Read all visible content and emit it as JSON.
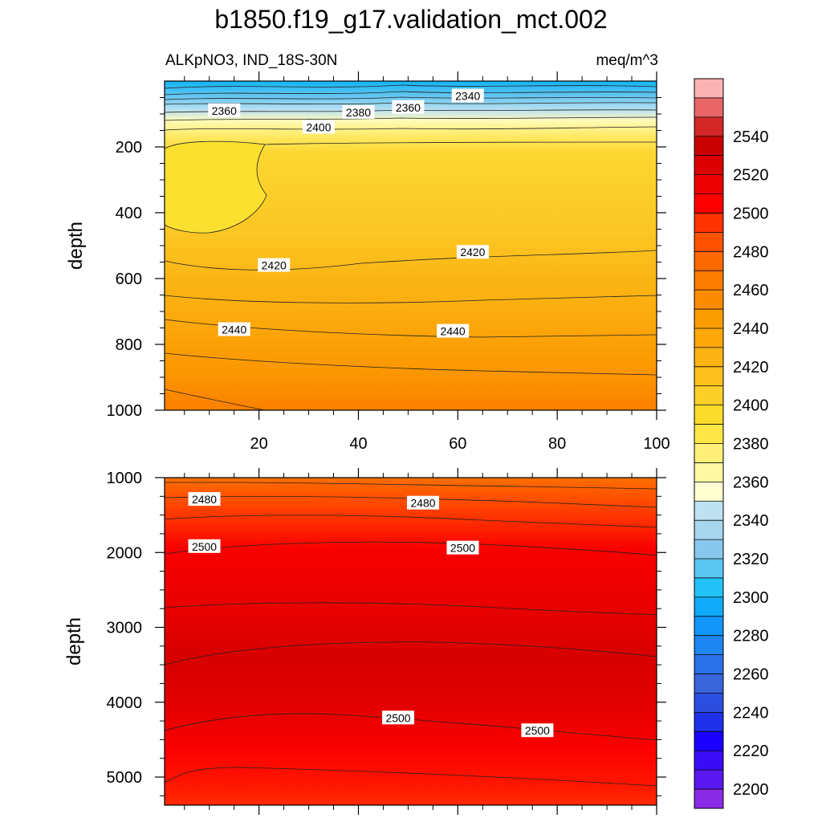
{
  "chart_data": [
    {
      "type": "contour",
      "title": "b1850.f19_g17.validation_mct.002",
      "left_string": "ALKpNO3, IND_18S-30N",
      "right_string": "meq/m^3",
      "ylabel": "depth",
      "xlabel": "",
      "xlim": [
        1,
        100
      ],
      "ylim": [
        0,
        1000
      ],
      "y_reversed": true,
      "x_ticks": [
        20,
        40,
        60,
        80,
        100
      ],
      "y_ticks": [
        200,
        400,
        600,
        800,
        1000
      ],
      "x_tick_labels": [
        "20",
        "40",
        "60",
        "80",
        "100"
      ],
      "y_tick_labels": [
        "200",
        "400",
        "600",
        "800",
        "1000"
      ],
      "contour_labels": [
        {
          "text": "2340",
          "x": 62,
          "y": 45
        },
        {
          "text": "2360",
          "x": 13,
          "y": 90
        },
        {
          "text": "2360",
          "x": 50,
          "y": 80
        },
        {
          "text": "2380",
          "x": 40,
          "y": 95
        },
        {
          "text": "2400",
          "x": 32,
          "y": 140
        },
        {
          "text": "2420",
          "x": 23,
          "y": 560
        },
        {
          "text": "2420",
          "x": 63,
          "y": 520
        },
        {
          "text": "2440",
          "x": 15,
          "y": 755
        },
        {
          "text": "2440",
          "x": 59,
          "y": 760
        }
      ]
    },
    {
      "type": "contour",
      "ylabel": "depth",
      "xlabel": "",
      "xlim": [
        1,
        100
      ],
      "ylim": [
        1000,
        5375
      ],
      "y_reversed": true,
      "y_ticks": [
        1000,
        2000,
        3000,
        4000,
        5000
      ],
      "y_tick_labels": [
        "1000",
        "2000",
        "3000",
        "4000",
        "5000"
      ],
      "contour_labels": [
        {
          "text": "2480",
          "x": 9,
          "y": 1290
        },
        {
          "text": "2480",
          "x": 53,
          "y": 1340
        },
        {
          "text": "2500",
          "x": 9,
          "y": 1920
        },
        {
          "text": "2500",
          "x": 61,
          "y": 1940
        },
        {
          "text": "2500",
          "x": 48,
          "y": 4210
        },
        {
          "text": "2500",
          "x": 76,
          "y": 4380
        }
      ]
    }
  ],
  "colorbar": {
    "levels": [
      2200,
      2210,
      2220,
      2230,
      2240,
      2250,
      2260,
      2270,
      2280,
      2290,
      2300,
      2310,
      2320,
      2330,
      2340,
      2350,
      2360,
      2370,
      2380,
      2390,
      2400,
      2410,
      2420,
      2430,
      2440,
      2450,
      2460,
      2470,
      2480,
      2490,
      2500,
      2510,
      2520,
      2530,
      2540,
      2550
    ],
    "label_values": [
      "2200",
      "2220",
      "2240",
      "2260",
      "2280",
      "2300",
      "2320",
      "2340",
      "2360",
      "2380",
      "2400",
      "2420",
      "2440",
      "2460",
      "2480",
      "2500",
      "2520",
      "2540"
    ],
    "colors": [
      "#8a2be8",
      "#5a18f0",
      "#3a0cf6",
      "#1a00ff",
      "#1f30e8",
      "#2c4ee0",
      "#3a66dc",
      "#2a70e8",
      "#1e86f0",
      "#1296fa",
      "#10aaf8",
      "#22c2f6",
      "#5ac6f2",
      "#88c8ec",
      "#a8d6ee",
      "#bee2f2",
      "#fffed0",
      "#fff7a4",
      "#fff07a",
      "#ffe648",
      "#fbdc2c",
      "#fcd028",
      "#fbc01c",
      "#fbb414",
      "#fba808",
      "#fb9c02",
      "#fb8c00",
      "#fc7c00",
      "#fd6a00",
      "#fe5200",
      "#ff3200",
      "#ff0000",
      "#ec0000",
      "#dc0000",
      "#c80000",
      "#d42828",
      "#e86666",
      "#fbb4b4"
    ]
  }
}
